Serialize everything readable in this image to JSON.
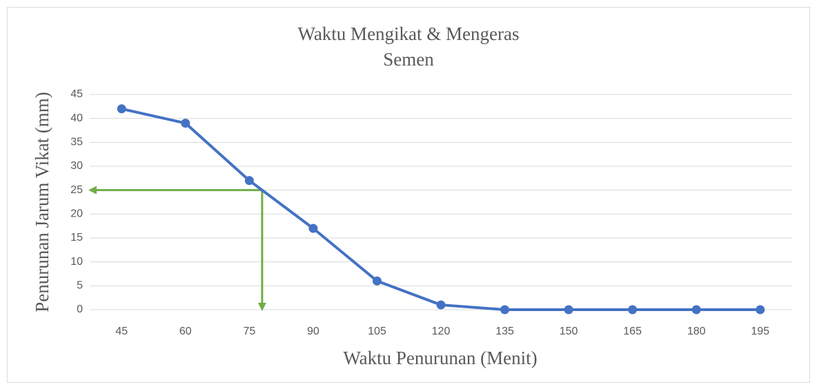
{
  "chart_data": {
    "type": "line",
    "title": [
      "Waktu Mengikat & Mengeras",
      "Semen"
    ],
    "xlabel": "Waktu Penurunan (Menit)",
    "ylabel": "Penurunan Jarum Vikat (mm)",
    "x": [
      45,
      60,
      75,
      90,
      105,
      120,
      135,
      150,
      165,
      180,
      195
    ],
    "xlim": [
      37.5,
      202.5
    ],
    "xticks": [
      45,
      60,
      75,
      90,
      105,
      120,
      135,
      150,
      165,
      180,
      195
    ],
    "series": [
      {
        "color": "#4472c4",
        "values": [
          42,
          39,
          27,
          17,
          6,
          1,
          0,
          0,
          0,
          0,
          0
        ]
      }
    ],
    "ylim": [
      0,
      45
    ],
    "yticks": [
      0,
      5,
      10,
      15,
      20,
      25,
      30,
      35,
      40,
      45
    ],
    "grid": true,
    "reference": {
      "x": 78,
      "y": 25,
      "color": "#70ad47"
    }
  }
}
